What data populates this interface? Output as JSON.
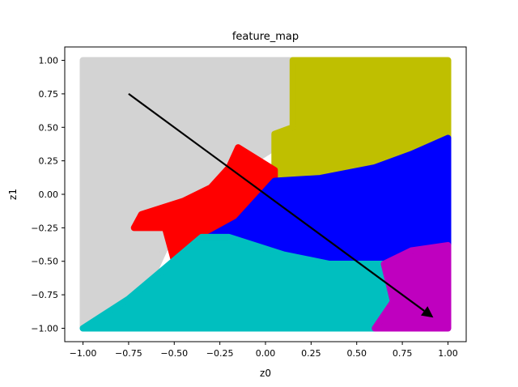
{
  "chart_data": {
    "type": "scatter",
    "title": "feature_map",
    "xlabel": "z0",
    "ylabel": "z1",
    "xlim": [
      -1.1,
      1.1
    ],
    "ylim": [
      -1.1,
      1.1
    ],
    "x_ticks": [
      "−1.00",
      "−0.75",
      "−0.50",
      "−0.25",
      "0.00",
      "0.25",
      "0.50",
      "0.75",
      "1.00"
    ],
    "y_ticks": [
      "−1.00",
      "−0.75",
      "−0.50",
      "−0.25",
      "0.00",
      "0.25",
      "0.50",
      "0.75",
      "1.00"
    ],
    "x_tick_values": [
      -1,
      -0.75,
      -0.5,
      -0.25,
      0,
      0.25,
      0.5,
      0.75,
      1
    ],
    "y_tick_values": [
      -1,
      -0.75,
      -0.5,
      -0.25,
      0,
      0.25,
      0.5,
      0.75,
      1
    ],
    "grid": false,
    "regions": [
      {
        "color": "#d3d3d3",
        "points": [
          [
            -1,
            1
          ],
          [
            0.15,
            1
          ],
          [
            0.15,
            0.45
          ],
          [
            0.05,
            0.35
          ],
          [
            -0.1,
            0.22
          ],
          [
            -0.35,
            0.0
          ],
          [
            -0.55,
            -0.15
          ],
          [
            -0.75,
            -0.3
          ],
          [
            -0.5,
            -0.25
          ],
          [
            -0.6,
            -0.55
          ],
          [
            -0.75,
            -0.78
          ],
          [
            -1,
            -1
          ]
        ]
      },
      {
        "color": "#bfbf00",
        "points": [
          [
            0.15,
            1
          ],
          [
            1,
            1
          ],
          [
            1,
            0.42
          ],
          [
            0.8,
            0.3
          ],
          [
            0.6,
            0.2
          ],
          [
            0.3,
            0.12
          ],
          [
            0.05,
            0.15
          ],
          [
            0.05,
            0.45
          ],
          [
            0.15,
            0.5
          ]
        ]
      },
      {
        "color": "#ff0000",
        "points": [
          [
            -0.15,
            0.35
          ],
          [
            0.05,
            0.18
          ],
          [
            0.05,
            0.05
          ],
          [
            -0.15,
            -0.2
          ],
          [
            -0.35,
            -0.35
          ],
          [
            -0.5,
            -0.5
          ],
          [
            -0.55,
            -0.25
          ],
          [
            -0.72,
            -0.25
          ],
          [
            -0.68,
            -0.15
          ],
          [
            -0.45,
            -0.05
          ],
          [
            -0.3,
            0.05
          ],
          [
            -0.2,
            0.2
          ]
        ]
      },
      {
        "color": "#0000ff",
        "points": [
          [
            0.05,
            0.1
          ],
          [
            0.3,
            0.12
          ],
          [
            0.6,
            0.2
          ],
          [
            0.8,
            0.3
          ],
          [
            1,
            0.42
          ],
          [
            1,
            -0.4
          ],
          [
            0.7,
            -0.45
          ],
          [
            0.55,
            -0.52
          ],
          [
            0.3,
            -0.52
          ],
          [
            0.1,
            -0.45
          ],
          [
            -0.1,
            -0.4
          ],
          [
            -0.2,
            -0.32
          ],
          [
            -0.35,
            -0.35
          ],
          [
            -0.15,
            -0.2
          ]
        ]
      },
      {
        "color": "#00bfbf",
        "points": [
          [
            -0.35,
            -0.32
          ],
          [
            -0.2,
            -0.32
          ],
          [
            0.1,
            -0.45
          ],
          [
            0.35,
            -0.52
          ],
          [
            0.65,
            -0.52
          ],
          [
            0.7,
            -0.8
          ],
          [
            0.6,
            -1
          ],
          [
            -1,
            -1
          ],
          [
            -0.75,
            -0.78
          ],
          [
            -0.55,
            -0.55
          ]
        ]
      },
      {
        "color": "#bf00bf",
        "points": [
          [
            0.65,
            -0.52
          ],
          [
            0.8,
            -0.42
          ],
          [
            1,
            -0.38
          ],
          [
            1,
            -1
          ],
          [
            0.6,
            -1
          ],
          [
            0.7,
            -0.8
          ]
        ]
      }
    ],
    "arrow": {
      "from": [
        -0.75,
        0.75
      ],
      "to": [
        0.92,
        -0.92
      ],
      "color": "#000000"
    }
  }
}
